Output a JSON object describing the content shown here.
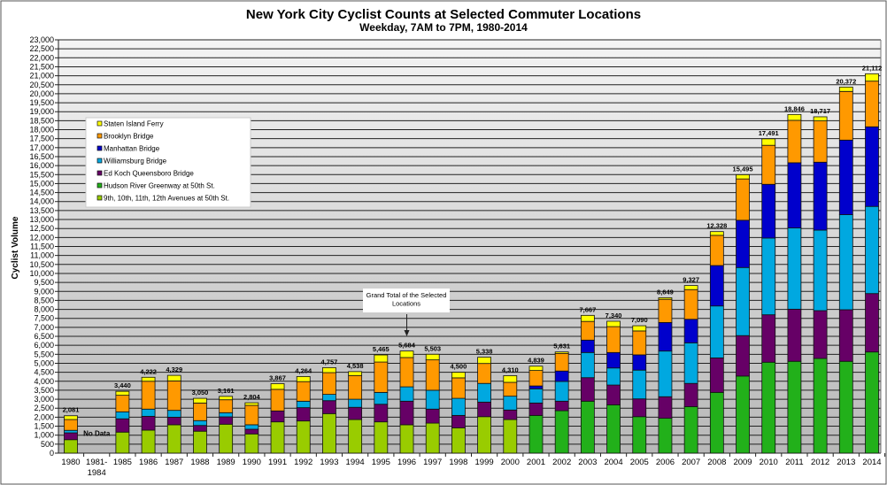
{
  "chart_data": {
    "type": "bar",
    "stacked": true,
    "title": "New York City Cyclist Counts at Selected Commuter Locations",
    "subtitle": "Weekday, 7AM to 7PM, 1980-2014",
    "xlabel": "",
    "ylabel": "Cyclist Volume",
    "ylim": [
      0,
      23000
    ],
    "ytick_step": 500,
    "grid": true,
    "legend_position": "upper-left",
    "categories": [
      "1980",
      "1981-\n1984",
      "1985",
      "1986",
      "1987",
      "1988",
      "1989",
      "1990",
      "1991",
      "1992",
      "1993",
      "1994",
      "1995",
      "1996",
      "1997",
      "1998",
      "1999",
      "2000",
      "2001",
      "2002",
      "2003",
      "2004",
      "2005",
      "2006",
      "2007",
      "2008",
      "2009",
      "2010",
      "2011",
      "2012",
      "2013",
      "2014"
    ],
    "totals": [
      "2,081",
      null,
      "3,440",
      "4,222",
      "4,329",
      "3,050",
      "3,161",
      "2,804",
      "3,867",
      "4,264",
      "4,757",
      "4,538",
      "5,465",
      "5,684",
      "5,503",
      "4,500",
      "5,338",
      "4,310",
      "4,839",
      "5,631",
      "7,667",
      "7,340",
      "7,090",
      "8,649",
      "9,327",
      "12,328",
      "15,495",
      "17,491",
      "18,846",
      "18,717",
      "20,372",
      "21,112"
    ],
    "series": [
      {
        "name": "9th, 10th, 11th, 12th Avenues at 50th St.",
        "color": "#99CC00",
        "values": [
          750,
          null,
          1170,
          1280,
          1580,
          1220,
          1610,
          1070,
          1740,
          1790,
          2200,
          1870,
          1740,
          1580,
          1670,
          1410,
          2030,
          1870,
          0,
          0,
          0,
          0,
          0,
          0,
          0,
          0,
          0,
          0,
          0,
          0,
          0,
          0
        ]
      },
      {
        "name": "Hudson River Greenway at 50th St.",
        "color": "#22B01A",
        "values": [
          0,
          null,
          0,
          0,
          0,
          0,
          0,
          0,
          0,
          0,
          0,
          0,
          0,
          0,
          0,
          0,
          0,
          0,
          2100,
          2360,
          2890,
          2690,
          2030,
          1940,
          2590,
          3380,
          4290,
          5060,
          5110,
          5270,
          5110,
          5630
        ]
      },
      {
        "name": "Ed Koch Queensboro Bridge",
        "color": "#660066",
        "values": [
          380,
          null,
          740,
          770,
          420,
          320,
          410,
          260,
          610,
          740,
          720,
          680,
          980,
          1310,
          780,
          690,
          810,
          530,
          690,
          530,
          1310,
          1100,
          990,
          1200,
          1290,
          1920,
          2250,
          2640,
          2900,
          2660,
          2870,
          3250
        ]
      },
      {
        "name": "Williamsburg Bridge",
        "color": "#00A8E0",
        "values": [
          140,
          null,
          390,
          400,
          380,
          270,
          230,
          250,
          0,
          360,
          350,
          450,
          660,
          800,
          1050,
          950,
          1040,
          770,
          790,
          1100,
          1400,
          950,
          1600,
          2540,
          2260,
          2890,
          3790,
          4270,
          4520,
          4480,
          5290,
          4850
        ]
      },
      {
        "name": "Manhattan Bridge",
        "color": "#0000CC",
        "values": [
          0,
          null,
          0,
          0,
          0,
          0,
          0,
          0,
          0,
          0,
          0,
          0,
          0,
          0,
          0,
          0,
          0,
          0,
          160,
          580,
          690,
          860,
          850,
          1590,
          1310,
          2250,
          2630,
          2990,
          3630,
          3780,
          4150,
          4430
        ]
      },
      {
        "name": "Brooklyn Bridge",
        "color": "#FF9900",
        "values": [
          600,
          null,
          920,
          1550,
          1640,
          980,
          720,
          1080,
          1200,
          1090,
          1210,
          1320,
          1690,
          1630,
          1690,
          1140,
          1110,
          770,
          860,
          980,
          1040,
          1440,
          1330,
          1290,
          1650,
          1680,
          2300,
          2170,
          2360,
          2300,
          2710,
          2540
        ]
      },
      {
        "name": "Staten Island Ferry",
        "color": "#FFFF00",
        "values": [
          211,
          null,
          220,
          222,
          309,
          260,
          191,
          144,
          317,
          284,
          277,
          218,
          395,
          364,
          313,
          310,
          348,
          370,
          239,
          81,
          337,
          300,
          290,
          89,
          227,
          208,
          235,
          361,
          326,
          227,
          242,
          412
        ]
      }
    ],
    "legend_order": [
      6,
      5,
      4,
      3,
      2,
      1,
      0
    ],
    "annotations": {
      "no_data": "No Data",
      "callout": [
        "Grand Total of the  Selected",
        "Locations"
      ],
      "callout_category": "1996"
    }
  }
}
